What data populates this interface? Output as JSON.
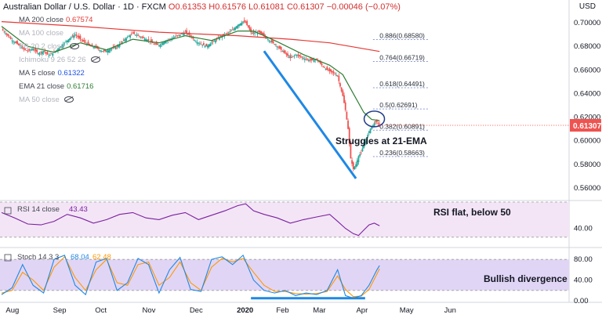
{
  "header": {
    "title": "Australian Dollar / U.S. Dollar · 1D · FXCM",
    "ohlc": "O0.61353 H0.61576 L0.61081 C0.61307 −0.00046 (−0.07%)",
    "currency": "USD"
  },
  "indicators": [
    {
      "label": "MA 200 close",
      "value": "0.67574",
      "color": "#e53935",
      "hidden": false
    },
    {
      "label": "MA 100 close",
      "value": "",
      "color": "#b2b5be",
      "hidden": true
    },
    {
      "label": "BB 20 2 close",
      "value": "",
      "color": "#b2b5be",
      "hidden": true
    },
    {
      "label": "Ichimoku 9 26 52 26",
      "value": "",
      "color": "#b2b5be",
      "hidden": true
    },
    {
      "label": "MA 5 close",
      "value": "0.61322",
      "color": "#1e53e5",
      "hidden": false
    },
    {
      "label": "EMA 21 close",
      "value": "0.61716",
      "color": "#2e7d32",
      "hidden": false
    },
    {
      "label": "MA 50 close",
      "value": "",
      "color": "#b2b5be",
      "hidden": true
    }
  ],
  "annotations": {
    "ema_note": "Struggles at 21-EMA",
    "rsi_note": "RSI flat, below 50",
    "stoch_note": "Bullish divergence"
  },
  "rsi": {
    "label": "RSI 14 close",
    "value": "43.43"
  },
  "stoch": {
    "label": "Stoch 14 3 3",
    "k_value": "68.04",
    "d_value": "62.48"
  },
  "chart_data": [
    {
      "type": "candlestick",
      "title": "Australian Dollar / U.S. Dollar · 1D · FXCM",
      "x": [
        "Aug",
        "Sep",
        "Oct",
        "Nov",
        "Dec",
        "2020",
        "Feb",
        "Mar",
        "Apr",
        "May",
        "Jun"
      ],
      "ylim": [
        0.55,
        0.71
      ],
      "y_ticks": [
        "0.70000",
        "0.68000",
        "0.66000",
        "0.64000",
        "0.62000",
        "0.60000",
        "0.58000",
        "0.56000"
      ],
      "last_price": "0.61307",
      "close_path": [
        [
          0,
          0.6945
        ],
        [
          4,
          0.69
        ],
        [
          8,
          0.685
        ],
        [
          12,
          0.682
        ],
        [
          16,
          0.678
        ],
        [
          20,
          0.676
        ],
        [
          24,
          0.678
        ],
        [
          28,
          0.674
        ],
        [
          32,
          0.676
        ],
        [
          36,
          0.672
        ],
        [
          40,
          0.675
        ],
        [
          44,
          0.679
        ],
        [
          48,
          0.683
        ],
        [
          52,
          0.687
        ],
        [
          56,
          0.69
        ],
        [
          60,
          0.686
        ],
        [
          64,
          0.683
        ],
        [
          68,
          0.68
        ],
        [
          72,
          0.679
        ],
        [
          76,
          0.676
        ],
        [
          80,
          0.676
        ],
        [
          84,
          0.678
        ],
        [
          88,
          0.68
        ],
        [
          92,
          0.684
        ],
        [
          96,
          0.688
        ],
        [
          100,
          0.691
        ],
        [
          104,
          0.689
        ],
        [
          108,
          0.687
        ],
        [
          112,
          0.685
        ],
        [
          116,
          0.682
        ],
        [
          120,
          0.681
        ],
        [
          124,
          0.684
        ],
        [
          128,
          0.686
        ],
        [
          132,
          0.688
        ],
        [
          136,
          0.69
        ],
        [
          140,
          0.692
        ],
        [
          144,
          0.689
        ],
        [
          148,
          0.684
        ],
        [
          152,
          0.682
        ],
        [
          156,
          0.68
        ],
        [
          160,
          0.683
        ],
        [
          164,
          0.686
        ],
        [
          168,
          0.689
        ],
        [
          172,
          0.691
        ],
        [
          176,
          0.694
        ],
        [
          180,
          0.698
        ],
        [
          184,
          0.701
        ],
        [
          186,
          0.7
        ],
        [
          188,
          0.696
        ],
        [
          190,
          0.692
        ],
        [
          192,
          0.691
        ],
        [
          196,
          0.692
        ],
        [
          200,
          0.689
        ],
        [
          204,
          0.685
        ],
        [
          208,
          0.682
        ],
        [
          212,
          0.678
        ],
        [
          216,
          0.674
        ],
        [
          220,
          0.67
        ],
        [
          224,
          0.673
        ],
        [
          228,
          0.671
        ],
        [
          232,
          0.669
        ],
        [
          236,
          0.668
        ],
        [
          240,
          0.669
        ],
        [
          244,
          0.664
        ],
        [
          248,
          0.66
        ],
        [
          252,
          0.658
        ],
        [
          256,
          0.655
        ],
        [
          258,
          0.646
        ],
        [
          260,
          0.638
        ],
        [
          262,
          0.626
        ],
        [
          264,
          0.61
        ],
        [
          266,
          0.585
        ],
        [
          268,
          0.576
        ],
        [
          270,
          0.58
        ],
        [
          272,
          0.587
        ],
        [
          274,
          0.59
        ],
        [
          276,
          0.597
        ],
        [
          278,
          0.602
        ],
        [
          280,
          0.608
        ],
        [
          282,
          0.612
        ],
        [
          284,
          0.615
        ],
        [
          286,
          0.616
        ],
        [
          288,
          0.6131
        ]
      ],
      "series": [
        {
          "name": "MA 200 close",
          "points": [
            [
              0,
              0.701
            ],
            [
              60,
              0.697
            ],
            [
              120,
              0.692
            ],
            [
              180,
              0.689
            ],
            [
              220,
              0.686
            ],
            [
              250,
              0.683
            ],
            [
              288,
              0.6757
            ]
          ]
        },
        {
          "name": "EMA 21 close",
          "points": [
            [
              0,
              0.697
            ],
            [
              20,
              0.68
            ],
            [
              40,
              0.675
            ],
            [
              60,
              0.683
            ],
            [
              80,
              0.677
            ],
            [
              100,
              0.686
            ],
            [
              120,
              0.683
            ],
            [
              140,
              0.689
            ],
            [
              160,
              0.685
            ],
            [
              180,
              0.693
            ],
            [
              192,
              0.693
            ],
            [
              210,
              0.684
            ],
            [
              230,
              0.673
            ],
            [
              250,
              0.664
            ],
            [
              260,
              0.656
            ],
            [
              268,
              0.64
            ],
            [
              276,
              0.624
            ],
            [
              282,
              0.618
            ],
            [
              288,
              0.6172
            ]
          ]
        }
      ],
      "fib_levels": [
        {
          "label": "0.886(0.68580)",
          "value": 0.6858
        },
        {
          "label": "0.764(0.66719)",
          "value": 0.66719
        },
        {
          "label": "0.618(0.64491)",
          "value": 0.64491
        },
        {
          "label": "0.5(0.62691)",
          "value": 0.62691
        },
        {
          "label": "0.382(0.60891)",
          "value": 0.60891
        },
        {
          "label": "0.236(0.58663)",
          "value": 0.58663
        }
      ]
    },
    {
      "type": "line",
      "title": "RSI 14 close",
      "ylim": [
        20,
        70
      ],
      "y_ticks": [
        "40.00"
      ],
      "band": [
        30,
        70
      ],
      "series": [
        {
          "name": "RSI 14 close",
          "points": [
            [
              0,
              58
            ],
            [
              10,
              52
            ],
            [
              20,
              45
            ],
            [
              30,
              44
            ],
            [
              40,
              48
            ],
            [
              50,
              56
            ],
            [
              60,
              52
            ],
            [
              70,
              46
            ],
            [
              80,
              50
            ],
            [
              90,
              56
            ],
            [
              100,
              58
            ],
            [
              110,
              52
            ],
            [
              120,
              50
            ],
            [
              130,
              55
            ],
            [
              140,
              58
            ],
            [
              150,
              50
            ],
            [
              160,
              55
            ],
            [
              170,
              60
            ],
            [
              180,
              66
            ],
            [
              186,
              68
            ],
            [
              192,
              60
            ],
            [
              200,
              56
            ],
            [
              210,
              52
            ],
            [
              220,
              46
            ],
            [
              230,
              50
            ],
            [
              240,
              53
            ],
            [
              250,
              56
            ],
            [
              256,
              48
            ],
            [
              262,
              40
            ],
            [
              268,
              34
            ],
            [
              272,
              32
            ],
            [
              276,
              38
            ],
            [
              280,
              44
            ],
            [
              284,
              46
            ],
            [
              288,
              43
            ]
          ]
        }
      ]
    },
    {
      "type": "line",
      "title": "Stoch 14 3 3",
      "ylim": [
        0,
        100
      ],
      "y_ticks": [
        "80.00",
        "40.00",
        "0.00"
      ],
      "band": [
        20,
        80
      ],
      "series": [
        {
          "name": "%K",
          "points": [
            [
              0,
              12
            ],
            [
              8,
              25
            ],
            [
              16,
              70
            ],
            [
              24,
              30
            ],
            [
              32,
              15
            ],
            [
              40,
              80
            ],
            [
              48,
              88
            ],
            [
              56,
              30
            ],
            [
              64,
              12
            ],
            [
              72,
              75
            ],
            [
              80,
              82
            ],
            [
              88,
              20
            ],
            [
              96,
              35
            ],
            [
              104,
              82
            ],
            [
              112,
              70
            ],
            [
              120,
              15
            ],
            [
              128,
              60
            ],
            [
              136,
              84
            ],
            [
              144,
              22
            ],
            [
              152,
              18
            ],
            [
              160,
              80
            ],
            [
              168,
              85
            ],
            [
              176,
              70
            ],
            [
              184,
              88
            ],
            [
              192,
              40
            ],
            [
              200,
              20
            ],
            [
              208,
              15
            ],
            [
              216,
              20
            ],
            [
              224,
              10
            ],
            [
              232,
              15
            ],
            [
              240,
              12
            ],
            [
              248,
              20
            ],
            [
              256,
              60
            ],
            [
              262,
              10
            ],
            [
              268,
              5
            ],
            [
              274,
              10
            ],
            [
              280,
              30
            ],
            [
              286,
              60
            ],
            [
              288,
              68
            ]
          ]
        },
        {
          "name": "%D",
          "points": [
            [
              0,
              15
            ],
            [
              8,
              20
            ],
            [
              16,
              55
            ],
            [
              24,
              40
            ],
            [
              32,
              20
            ],
            [
              40,
              65
            ],
            [
              48,
              85
            ],
            [
              56,
              45
            ],
            [
              64,
              20
            ],
            [
              72,
              60
            ],
            [
              80,
              80
            ],
            [
              88,
              35
            ],
            [
              96,
              30
            ],
            [
              104,
              70
            ],
            [
              112,
              75
            ],
            [
              120,
              30
            ],
            [
              128,
              45
            ],
            [
              136,
              75
            ],
            [
              144,
              35
            ],
            [
              152,
              20
            ],
            [
              160,
              65
            ],
            [
              168,
              82
            ],
            [
              176,
              75
            ],
            [
              184,
              82
            ],
            [
              192,
              55
            ],
            [
              200,
              30
            ],
            [
              208,
              18
            ],
            [
              216,
              18
            ],
            [
              224,
              14
            ],
            [
              232,
              13
            ],
            [
              240,
              14
            ],
            [
              248,
              18
            ],
            [
              256,
              48
            ],
            [
              262,
              22
            ],
            [
              268,
              8
            ],
            [
              274,
              9
            ],
            [
              280,
              22
            ],
            [
              286,
              52
            ],
            [
              288,
              62
            ]
          ]
        }
      ]
    }
  ]
}
